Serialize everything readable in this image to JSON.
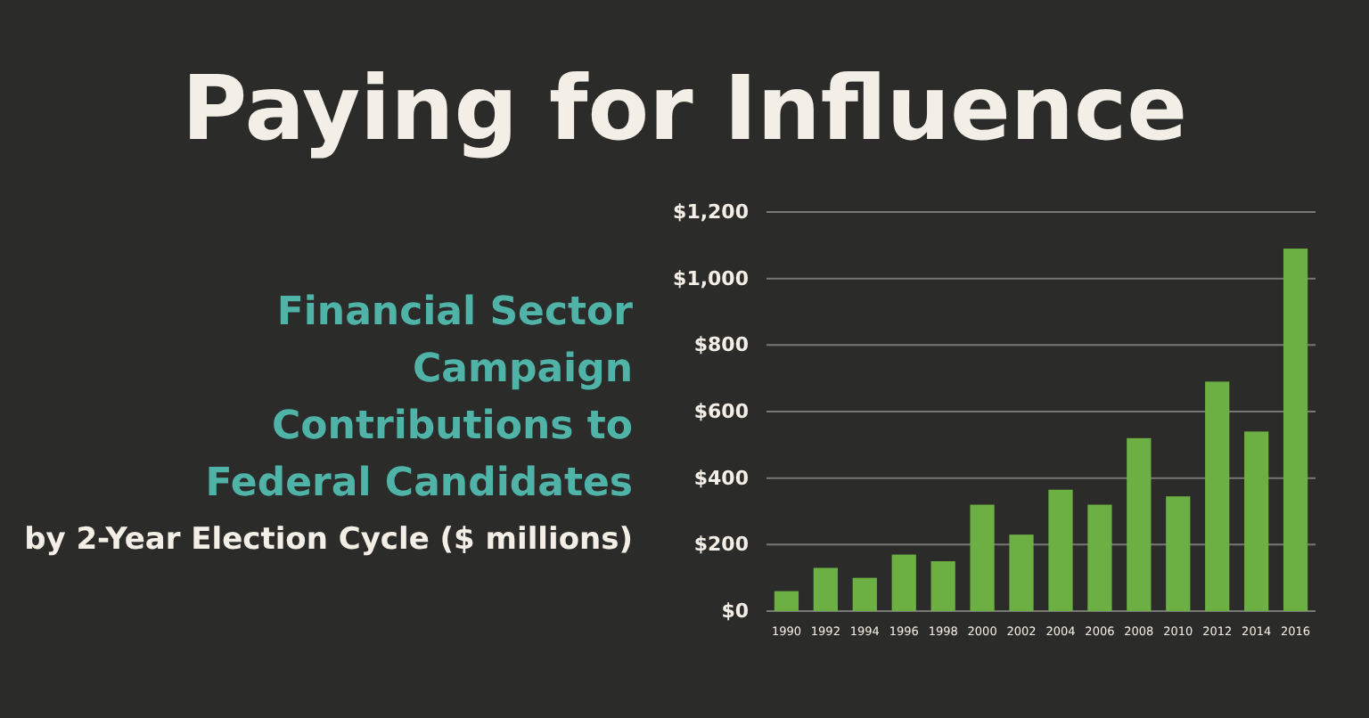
{
  "chart_data": {
    "type": "bar",
    "title": "Paying for Influence",
    "subtitle": "Financial Sector Campaign Contributions to Federal Candidates",
    "annotations": [
      "by 2-Year Election Cycle ($ millions)"
    ],
    "categories": [
      "1990",
      "1992",
      "1994",
      "1996",
      "1998",
      "2000",
      "2002",
      "2004",
      "2006",
      "2008",
      "2010",
      "2012",
      "2014",
      "2016"
    ],
    "values": [
      60,
      130,
      100,
      170,
      150,
      320,
      230,
      365,
      320,
      520,
      345,
      690,
      540,
      1090
    ],
    "color": "#6cb044",
    "ylim": [
      0,
      1200
    ],
    "yticks": [
      {
        "value": 0,
        "label": "$0"
      },
      {
        "value": 200,
        "label": "$200"
      },
      {
        "value": 400,
        "label": "$400"
      },
      {
        "value": 600,
        "label": "$600"
      },
      {
        "value": 800,
        "label": "$800"
      },
      {
        "value": 1000,
        "label": "$1,000"
      },
      {
        "value": 1200,
        "label": "$1,200"
      }
    ],
    "grid": "y"
  }
}
